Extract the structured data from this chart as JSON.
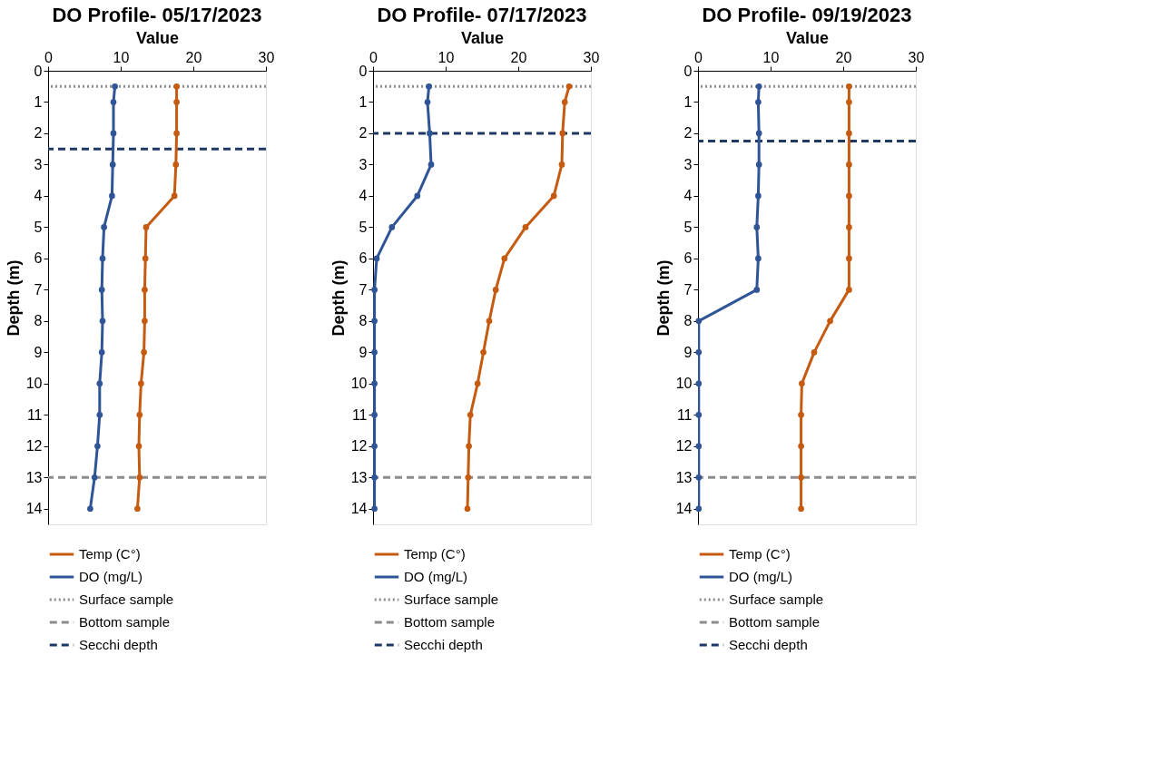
{
  "chart_data": [
    {
      "type": "line",
      "title": "DO Profile- 05/17/2023",
      "xlabel": "Value",
      "ylabel": "Depth (m)",
      "orientation": "horizontal",
      "marker": "circle",
      "legend": "bottom",
      "grid": false,
      "x": [
        0.5,
        1,
        2,
        3,
        4,
        5,
        6,
        7,
        8,
        9,
        10,
        11,
        12,
        13,
        14
      ],
      "xlim": [
        0,
        30
      ],
      "xticks": [
        0,
        10,
        20,
        30
      ],
      "ylim": [
        14.5,
        0
      ],
      "yticks": [
        0,
        1,
        2,
        3,
        4,
        5,
        6,
        7,
        8,
        9,
        10,
        11,
        12,
        13,
        14
      ],
      "series": [
        {
          "name": "Temp (C°)",
          "color": "#c55a11",
          "line_style": "solid",
          "values": [
            17.7,
            17.7,
            17.7,
            17.6,
            17.4,
            13.5,
            13.4,
            13.3,
            13.3,
            13.2,
            12.8,
            12.6,
            12.5,
            12.6,
            12.3
          ]
        },
        {
          "name": "DO (mg/L)",
          "color": "#2f5597",
          "line_style": "solid",
          "values": [
            9.2,
            9.0,
            9.0,
            8.9,
            8.8,
            7.7,
            7.5,
            7.4,
            7.5,
            7.4,
            7.1,
            7.1,
            6.8,
            6.4,
            5.8
          ]
        }
      ],
      "ref_lines": [
        {
          "axis": "y",
          "value": 0.5,
          "label": "Surface sample",
          "color": "#8c8c8c",
          "line_style": "dotted"
        },
        {
          "axis": "y",
          "value": 13,
          "label": "Bottom sample",
          "color": "#8c8c8c",
          "line_style": "dashed"
        },
        {
          "axis": "y",
          "value": 2.5,
          "label": "Secchi depth",
          "color": "#1f3864",
          "line_style": "dashed"
        }
      ]
    },
    {
      "type": "line",
      "title": "DO Profile- 07/17/2023",
      "xlabel": "Value",
      "ylabel": "Depth (m)",
      "orientation": "horizontal",
      "marker": "circle",
      "legend": "bottom",
      "grid": false,
      "x": [
        0.5,
        1,
        2,
        3,
        4,
        5,
        6,
        7,
        8,
        9,
        10,
        11,
        12,
        13,
        14
      ],
      "xlim": [
        0,
        30
      ],
      "xticks": [
        0,
        10,
        20,
        30
      ],
      "ylim": [
        14.5,
        0
      ],
      "yticks": [
        0,
        1,
        2,
        3,
        4,
        5,
        6,
        7,
        8,
        9,
        10,
        11,
        12,
        13,
        14
      ],
      "series": [
        {
          "name": "Temp (C°)",
          "color": "#c55a11",
          "line_style": "solid",
          "values": [
            27.0,
            26.4,
            26.1,
            26.0,
            24.9,
            21.0,
            18.1,
            16.9,
            16.0,
            15.2,
            14.4,
            13.4,
            13.2,
            13.1,
            13.0
          ]
        },
        {
          "name": "DO (mg/L)",
          "color": "#2f5597",
          "line_style": "solid",
          "values": [
            7.7,
            7.5,
            7.8,
            8.0,
            6.1,
            2.6,
            0.5,
            0.2,
            0.2,
            0.2,
            0.2,
            0.2,
            0.2,
            0.2,
            0.2
          ]
        }
      ],
      "ref_lines": [
        {
          "axis": "y",
          "value": 0.5,
          "label": "Surface sample",
          "color": "#8c8c8c",
          "line_style": "dotted"
        },
        {
          "axis": "y",
          "value": 13,
          "label": "Bottom sample",
          "color": "#8c8c8c",
          "line_style": "dashed"
        },
        {
          "axis": "y",
          "value": 2,
          "label": "Secchi depth",
          "color": "#1f3864",
          "line_style": "dashed"
        }
      ]
    },
    {
      "type": "line",
      "title": "DO Profile- 09/19/2023",
      "xlabel": "Value",
      "ylabel": "Depth (m)",
      "orientation": "horizontal",
      "marker": "circle",
      "legend": "bottom",
      "grid": false,
      "x": [
        0.5,
        1,
        2,
        3,
        4,
        5,
        6,
        7,
        8,
        9,
        10,
        11,
        12,
        13,
        14
      ],
      "xlim": [
        0,
        30
      ],
      "xticks": [
        0,
        10,
        20,
        30
      ],
      "ylim": [
        14.5,
        0
      ],
      "yticks": [
        0,
        1,
        2,
        3,
        4,
        5,
        6,
        7,
        8,
        9,
        10,
        11,
        12,
        13,
        14
      ],
      "series": [
        {
          "name": "Temp (C°)",
          "color": "#c55a11",
          "line_style": "solid",
          "values": [
            20.8,
            20.8,
            20.8,
            20.8,
            20.8,
            20.8,
            20.8,
            20.8,
            18.2,
            16.0,
            14.3,
            14.2,
            14.2,
            14.2,
            14.2
          ]
        },
        {
          "name": "DO (mg/L)",
          "color": "#2f5597",
          "line_style": "solid",
          "values": [
            8.4,
            8.3,
            8.4,
            8.4,
            8.3,
            8.1,
            8.3,
            8.1,
            0.1,
            0.1,
            0.1,
            0.1,
            0.1,
            0.1,
            0.1
          ]
        }
      ],
      "ref_lines": [
        {
          "axis": "y",
          "value": 0.5,
          "label": "Surface sample",
          "color": "#8c8c8c",
          "line_style": "dotted"
        },
        {
          "axis": "y",
          "value": 13,
          "label": "Bottom sample",
          "color": "#8c8c8c",
          "line_style": "dashed"
        },
        {
          "axis": "y",
          "value": 2.25,
          "label": "Secchi depth",
          "color": "#1f3864",
          "line_style": "dashed"
        }
      ]
    }
  ]
}
